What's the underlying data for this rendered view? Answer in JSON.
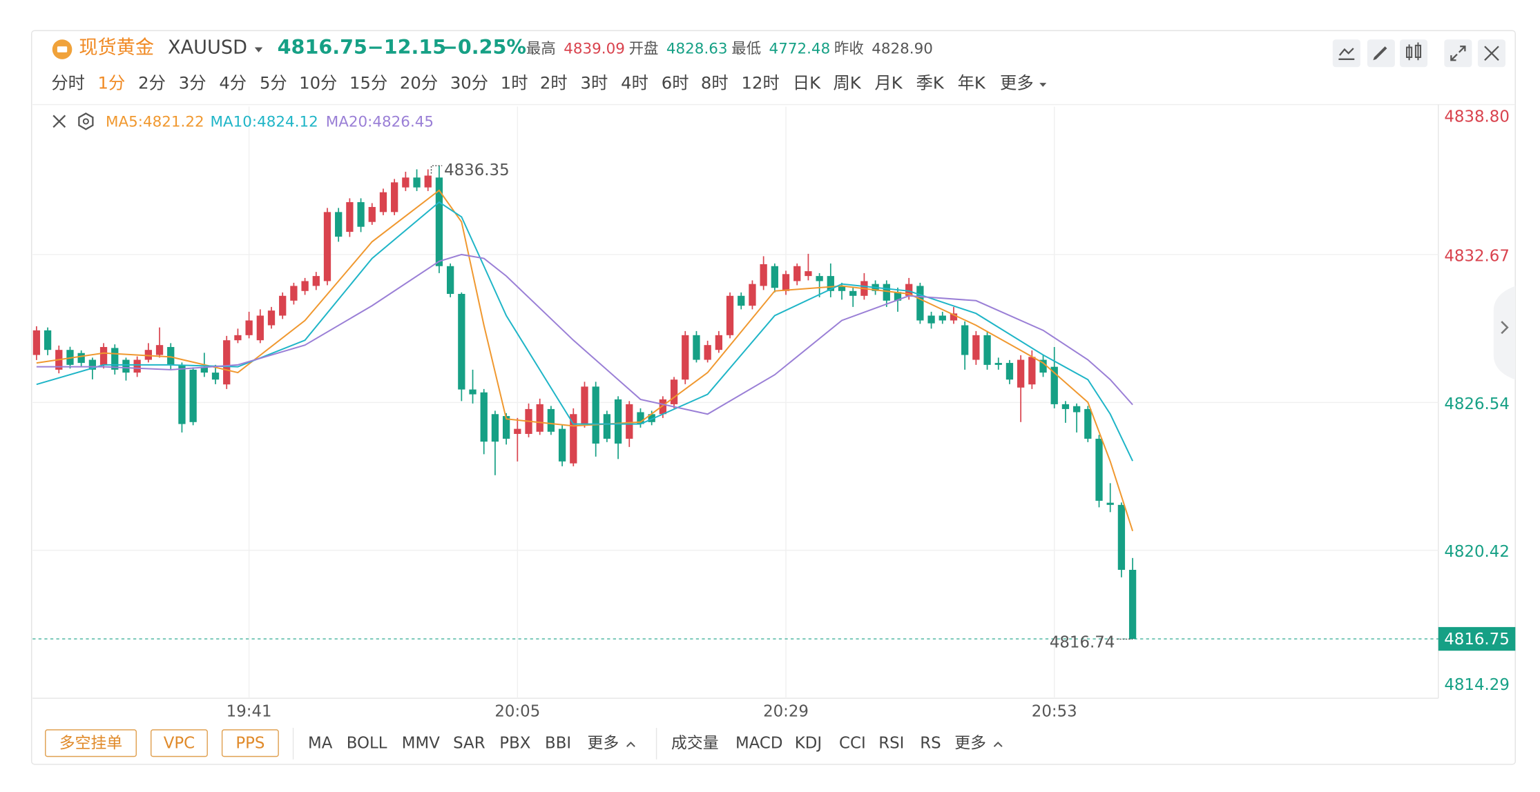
{
  "header": {
    "name": "现货黄金",
    "symbol": "XAUUSD",
    "change": "−12.15",
    "change_pct": "−0.25%",
    "stats": [
      {
        "name": "最高",
        "value": 4839.09,
        "label": "4839.09",
        "color": "#d9434e"
      },
      {
        "name": "开盘",
        "value": 4828.63,
        "label": "4828.63",
        "color": "#16a085"
      },
      {
        "name": "最低",
        "value": 4772.48,
        "label": "4772.48",
        "color": "#16a085"
      },
      {
        "name": "昨收",
        "value": 4828.9,
        "label": "4828.90",
        "color": "#555555"
      }
    ]
  },
  "tabs": {
    "items": [
      "分时",
      "1分",
      "2分",
      "3分",
      "4分",
      "5分",
      "10分",
      "15分",
      "20分",
      "30分",
      "1时",
      "2时",
      "3时",
      "4时",
      "6时",
      "8时",
      "12时",
      "日K",
      "周K",
      "月K",
      "季K",
      "年K",
      "更多"
    ],
    "active": 1
  },
  "indicator_bar": {
    "buttons": [
      "多空挂单",
      "VPC",
      "PPS"
    ],
    "main": [
      "MA",
      "BOLL",
      "MMV",
      "SAR",
      "PBX",
      "BBI",
      "更多"
    ],
    "sub": [
      "成交量",
      "MACD",
      "KDJ",
      "CCI",
      "RSI",
      "RS",
      "更多"
    ]
  },
  "chart_data": {
    "type": "candlestick",
    "up_color": "#d9434e",
    "down_color": "#16a085",
    "categories": [
      null,
      null,
      null,
      null,
      null,
      null,
      null,
      null,
      null,
      null,
      null,
      null,
      null,
      null,
      null,
      null,
      null,
      null,
      null,
      "19:41",
      null,
      null,
      null,
      null,
      null,
      null,
      null,
      null,
      null,
      null,
      null,
      null,
      null,
      null,
      null,
      null,
      null,
      null,
      null,
      null,
      null,
      null,
      null,
      "20:05",
      null,
      null,
      null,
      null,
      null,
      null,
      null,
      null,
      null,
      null,
      null,
      null,
      null,
      null,
      null,
      null,
      null,
      null,
      null,
      null,
      null,
      null,
      null,
      "20:29",
      null,
      null,
      null,
      null,
      null,
      null,
      null,
      null,
      null,
      null,
      null,
      null,
      null,
      null,
      null,
      null,
      null,
      null,
      null,
      null,
      null,
      null,
      null,
      "20:53",
      null,
      null,
      null,
      null,
      null,
      null,
      null
    ],
    "open": [
      4828.51,
      4829.53,
      4827.9,
      4828.72,
      4828.59,
      4828.31,
      4828.1,
      4828.8,
      4828.31,
      4827.78,
      4828.31,
      4828.51,
      4828.84,
      4828.1,
      4827.9,
      4828.02,
      4827.78,
      4827.29,
      4829.12,
      4829.33,
      4829.12,
      4829.74,
      4830.14,
      4830.76,
      4831.16,
      4831.37,
      4831.57,
      4834.43,
      4833.61,
      4834.84,
      4834.02,
      4834.43,
      4834.43,
      4835.45,
      4835.86,
      4835.45,
      4835.86,
      4832.19,
      4831.04,
      4827.08,
      4826.96,
      4826.06,
      4825.98,
      4825.24,
      4825.24,
      4825.33,
      4826.27,
      4825.45,
      4824.02,
      4825.65,
      4827.2,
      4826.06,
      4826.67,
      4825.04,
      4826.14,
      4826.06,
      4826.06,
      4826.47,
      4827.49,
      4829.33,
      4828.31,
      4828.72,
      4829.33,
      4830.96,
      4830.55,
      4831.37,
      4832.19,
      4831.16,
      4831.57,
      4831.78,
      4831.78,
      4831.78,
      4831.37,
      4831.16,
      4830.96,
      4831.45,
      4831.45,
      4831.12,
      4830.96,
      4831.37,
      4830.14,
      4830.14,
      4829.94,
      4829.74,
      4828.31,
      4829.33,
      4828.18,
      4828.18,
      4827.16,
      4827.29,
      4828.31,
      4828.02,
      4826.47,
      4826.39,
      4826.27,
      4825.04,
      4822.39,
      4822.3,
      4819.61
    ],
    "high": [
      4829.7,
      4829.65,
      4828.9,
      4828.85,
      4828.7,
      4828.4,
      4829.0,
      4828.95,
      4828.4,
      4828.45,
      4829.0,
      4829.65,
      4829.0,
      4828.2,
      4828.0,
      4828.6,
      4828.1,
      4829.3,
      4829.6,
      4830.3,
      4830.4,
      4830.5,
      4831.1,
      4831.5,
      4831.7,
      4831.95,
      4834.6,
      4834.6,
      4835.0,
      4835.0,
      4834.8,
      4835.4,
      4835.8,
      4836.1,
      4836.2,
      4836.2,
      4836.35,
      4832.3,
      4831.1,
      4827.9,
      4827.1,
      4826.2,
      4826.1,
      4825.9,
      4826.5,
      4826.7,
      4826.4,
      4825.6,
      4826.3,
      4827.4,
      4827.4,
      4826.2,
      4826.8,
      4826.6,
      4826.3,
      4826.2,
      4826.8,
      4827.6,
      4829.5,
      4829.5,
      4829.1,
      4829.5,
      4831.1,
      4831.1,
      4831.6,
      4832.6,
      4832.3,
      4832.0,
      4832.3,
      4832.7,
      4831.9,
      4832.3,
      4831.5,
      4831.3,
      4831.9,
      4831.6,
      4831.6,
      4831.3,
      4831.7,
      4831.5,
      4830.3,
      4830.3,
      4830.5,
      4829.9,
      4829.5,
      4829.5,
      4828.4,
      4828.3,
      4828.5,
      4828.7,
      4828.5,
      4828.84,
      4826.6,
      4826.5,
      4826.4,
      4825.2,
      4823.2,
      4822.4,
      4820.1
    ],
    "low": [
      4828.3,
      4828.5,
      4827.75,
      4827.95,
      4828.0,
      4827.5,
      4827.95,
      4827.7,
      4827.45,
      4827.6,
      4828.2,
      4828.4,
      4827.9,
      4825.3,
      4825.6,
      4827.6,
      4827.3,
      4827.1,
      4829.0,
      4829.2,
      4829.0,
      4829.6,
      4830.0,
      4830.6,
      4831.0,
      4831.2,
      4831.4,
      4833.2,
      4833.4,
      4833.6,
      4833.9,
      4834.3,
      4834.3,
      4835.3,
      4835.3,
      4835.3,
      4831.9,
      4830.9,
      4826.6,
      4826.5,
      4824.4,
      4823.53,
      4824.8,
      4824.1,
      4825.1,
      4825.2,
      4825.2,
      4823.9,
      4823.9,
      4825.5,
      4824.3,
      4824.9,
      4824.2,
      4824.7,
      4825.5,
      4825.6,
      4825.9,
      4826.3,
      4827.3,
      4828.2,
      4828.2,
      4828.6,
      4829.2,
      4830.4,
      4830.4,
      4831.2,
      4831.1,
      4831.0,
      4831.4,
      4831.6,
      4830.9,
      4830.9,
      4830.8,
      4830.5,
      4830.8,
      4831.0,
      4830.5,
      4830.3,
      4830.8,
      4829.8,
      4829.6,
      4829.8,
      4829.8,
      4827.9,
      4828.1,
      4827.9,
      4827.9,
      4827.3,
      4825.73,
      4827.1,
      4827.6,
      4826.3,
      4825.7,
      4825.3,
      4824.9,
      4822.2,
      4822.0,
      4819.3,
      4816.74
    ],
    "close": [
      4829.53,
      4828.72,
      4828.72,
      4828.1,
      4828.18,
      4827.9,
      4828.84,
      4827.9,
      4827.78,
      4828.31,
      4828.72,
      4828.92,
      4828.1,
      4825.65,
      4825.73,
      4827.78,
      4827.49,
      4829.12,
      4829.33,
      4829.94,
      4830.14,
      4830.35,
      4830.96,
      4831.37,
      4831.57,
      4831.78,
      4834.43,
      4833.41,
      4834.84,
      4833.82,
      4834.64,
      4835.25,
      4835.66,
      4835.86,
      4835.45,
      4835.94,
      4832.19,
      4831.04,
      4827.08,
      4826.88,
      4824.92,
      4824.92,
      4825.04,
      4825.45,
      4826.27,
      4826.47,
      4825.33,
      4824.1,
      4826.06,
      4827.2,
      4824.84,
      4825.04,
      4824.84,
      4826.47,
      4825.65,
      4825.73,
      4826.67,
      4827.49,
      4829.33,
      4828.31,
      4828.92,
      4829.33,
      4830.96,
      4830.55,
      4831.45,
      4832.27,
      4831.29,
      4831.86,
      4832.19,
      4831.98,
      4831.57,
      4831.16,
      4831.16,
      4830.96,
      4831.57,
      4831.16,
      4830.76,
      4830.76,
      4831.45,
      4829.94,
      4829.82,
      4829.94,
      4830.23,
      4828.51,
      4829.33,
      4828.1,
      4828.1,
      4827.49,
      4828.31,
      4828.43,
      4827.78,
      4826.47,
      4826.27,
      4826.14,
      4825.04,
      4822.47,
      4822.3,
      4819.61,
      4816.75
    ],
    "lines": [
      {
        "name": "MA5:4821.22",
        "color": "#f0982f",
        "x": [
          0,
          6,
          12,
          18,
          24,
          30,
          36,
          38,
          40,
          42,
          48,
          54,
          60,
          66,
          72,
          78,
          84,
          90,
          94,
          96,
          98
        ],
        "values": [
          4828.18,
          4828.59,
          4828.43,
          4827.78,
          4829.94,
          4833.2,
          4835.33,
          4834.02,
          4829.74,
          4825.86,
          4825.57,
          4825.73,
          4827.78,
          4831.16,
          4831.37,
          4831.04,
          4829.74,
          4828.18,
          4826.55,
          4824.1,
          4821.22
        ]
      },
      {
        "name": "MA10:4824.12",
        "color": "#1fb5c7",
        "x": [
          0,
          6,
          12,
          18,
          24,
          30,
          36,
          38,
          40,
          42,
          48,
          54,
          60,
          66,
          72,
          78,
          84,
          90,
          94,
          96,
          98
        ],
        "values": [
          4827.29,
          4828.1,
          4828.1,
          4828.02,
          4829.12,
          4832.51,
          4834.84,
          4834.23,
          4832.19,
          4830.14,
          4825.65,
          4825.65,
          4826.88,
          4830.14,
          4831.45,
          4831.16,
          4830.23,
          4828.51,
          4827.49,
          4826.06,
          4824.12
        ]
      },
      {
        "name": "MA20:4826.45",
        "color": "#9a7fd6",
        "x": [
          0,
          6,
          12,
          18,
          24,
          30,
          36,
          38,
          40,
          42,
          48,
          54,
          60,
          66,
          72,
          78,
          84,
          90,
          94,
          96,
          98
        ],
        "values": [
          4828.02,
          4828.02,
          4827.9,
          4828.1,
          4828.92,
          4830.55,
          4832.39,
          4832.67,
          4832.51,
          4831.78,
          4829.12,
          4826.67,
          4826.06,
          4827.69,
          4829.94,
          4830.96,
          4830.76,
          4829.53,
          4828.31,
          4827.49,
          4826.45
        ]
      }
    ],
    "ylim": [
      4814.29,
      4838.8
    ],
    "yticks": [
      {
        "value": 4838.8,
        "label": "4838.80"
      },
      {
        "value": 4832.67,
        "label": "4832.67"
      },
      {
        "value": 4826.54,
        "label": "4826.54"
      },
      {
        "value": 4820.42,
        "label": "4820.42"
      },
      {
        "value": 4814.29,
        "label": "4814.29"
      }
    ],
    "grid": true,
    "last_price": {
      "value": 4816.75,
      "label": "4816.75"
    },
    "high_label": {
      "value": 4836.35,
      "label": "4836.35"
    },
    "low_label": {
      "value": 4816.74,
      "label": "4816.74"
    }
  }
}
